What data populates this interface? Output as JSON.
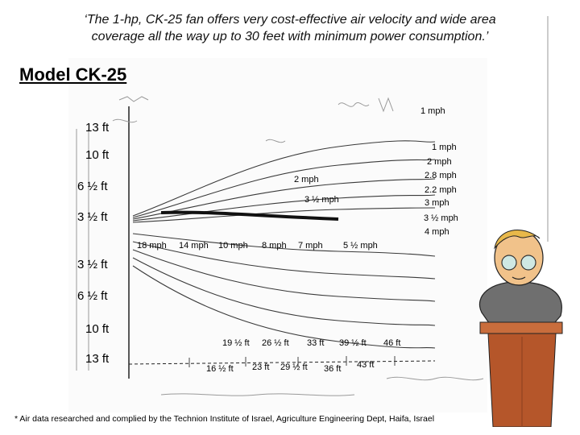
{
  "quote": {
    "line1": "‘The 1-hp, CK-25 fan offers very cost-effective air velocity and wide area",
    "line2": "coverage all the way up to 30 feet with minimum power consumption.’"
  },
  "model_title": "Model CK-25",
  "left_scale": [
    "13 ft",
    "10 ft",
    "6 ½ ft",
    "3 ½ ft",
    "3 ½ ft",
    "6 ½ ft",
    "10 ft",
    "13 ft"
  ],
  "speed_labels_plot": [
    "18 mph",
    "14 mph",
    "10 mph",
    "8 mph",
    "7 mph",
    "5 ½ mph"
  ],
  "upper_labels": [
    "2 mph",
    "3 ½ mph"
  ],
  "right_speeds": [
    "1 mph",
    "1 mph",
    "2 mph",
    "2.8 mph",
    "2.2 mph",
    "3 mph",
    "3 ½ mph",
    "4 mph"
  ],
  "distances_top": [
    "19 ½ ft",
    "26 ½ ft",
    "33 ft",
    "39 ½ ft",
    "46 ft"
  ],
  "distances_bottom": [
    "16 ½ ft",
    "23 ft",
    "29 ½ ft",
    "36 ft",
    "43 ft"
  ],
  "footer": "* Air data researched and complied by the Technion Institute of Israel, Agriculture Engineering Dept, Haifa, Israel",
  "colors": {
    "ink": "#000000",
    "sketch": "#3a3a3a",
    "paper": "#ffffff",
    "presenter_podium": "#b5562a"
  }
}
